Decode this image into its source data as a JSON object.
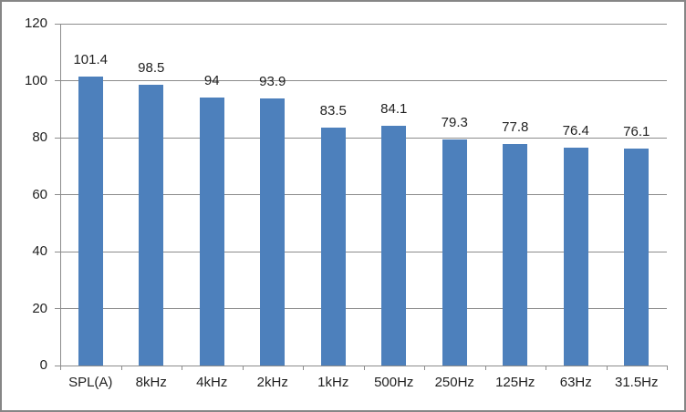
{
  "chart_data": {
    "type": "bar",
    "title": "",
    "xlabel": "",
    "ylabel": "",
    "categories": [
      "SPL(A)",
      "8kHz",
      "4kHz",
      "2kHz",
      "1kHz",
      "500Hz",
      "250Hz",
      "125Hz",
      "63Hz",
      "31.5Hz"
    ],
    "values": [
      101.4,
      98.5,
      94,
      93.9,
      83.5,
      84.1,
      79.3,
      77.8,
      76.4,
      76.1
    ],
    "data_labels": [
      "101.4",
      "98.5",
      "94",
      "93.9",
      "83.5",
      "84.1",
      "79.3",
      "77.8",
      "76.4",
      "76.1"
    ],
    "ylim": [
      0,
      120
    ],
    "y_ticks": [
      "0",
      "20",
      "40",
      "60",
      "80",
      "100",
      "120"
    ],
    "grid": true,
    "legend": "none",
    "colors": {
      "bar": "#4D80BC",
      "gridline": "#8C8C8C",
      "axis": "#8C8C8C",
      "text": "#1f1f1f",
      "frame_border": "#868686",
      "background": "#FFFFFF"
    }
  }
}
